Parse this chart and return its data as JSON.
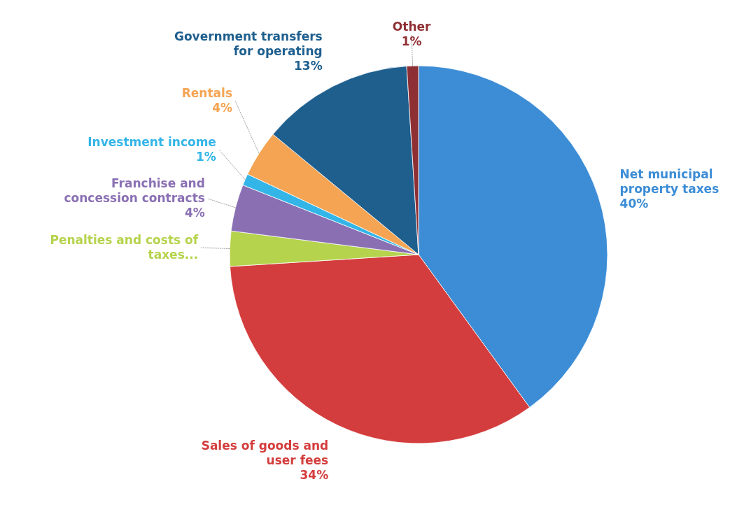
{
  "chart_data": {
    "type": "pie",
    "categories": [
      "Net municipal property taxes",
      "Sales of goods and user fees",
      "Penalties and costs of taxes...",
      "Franchise and concession contracts",
      "Investment income",
      "Rentals",
      "Government transfers for operating",
      "Other"
    ],
    "values": [
      40,
      34,
      3,
      4,
      1,
      4,
      13,
      1
    ],
    "value_labels": [
      "40%",
      "34%",
      null,
      "4%",
      "1%",
      "4%",
      "13%",
      "1%"
    ],
    "colors": [
      "#3c8dd6",
      "#d43d3d",
      "#b5d34c",
      "#8a70b3",
      "#33b5e8",
      "#f4a452",
      "#1e5f8e",
      "#8e2f33"
    ]
  }
}
